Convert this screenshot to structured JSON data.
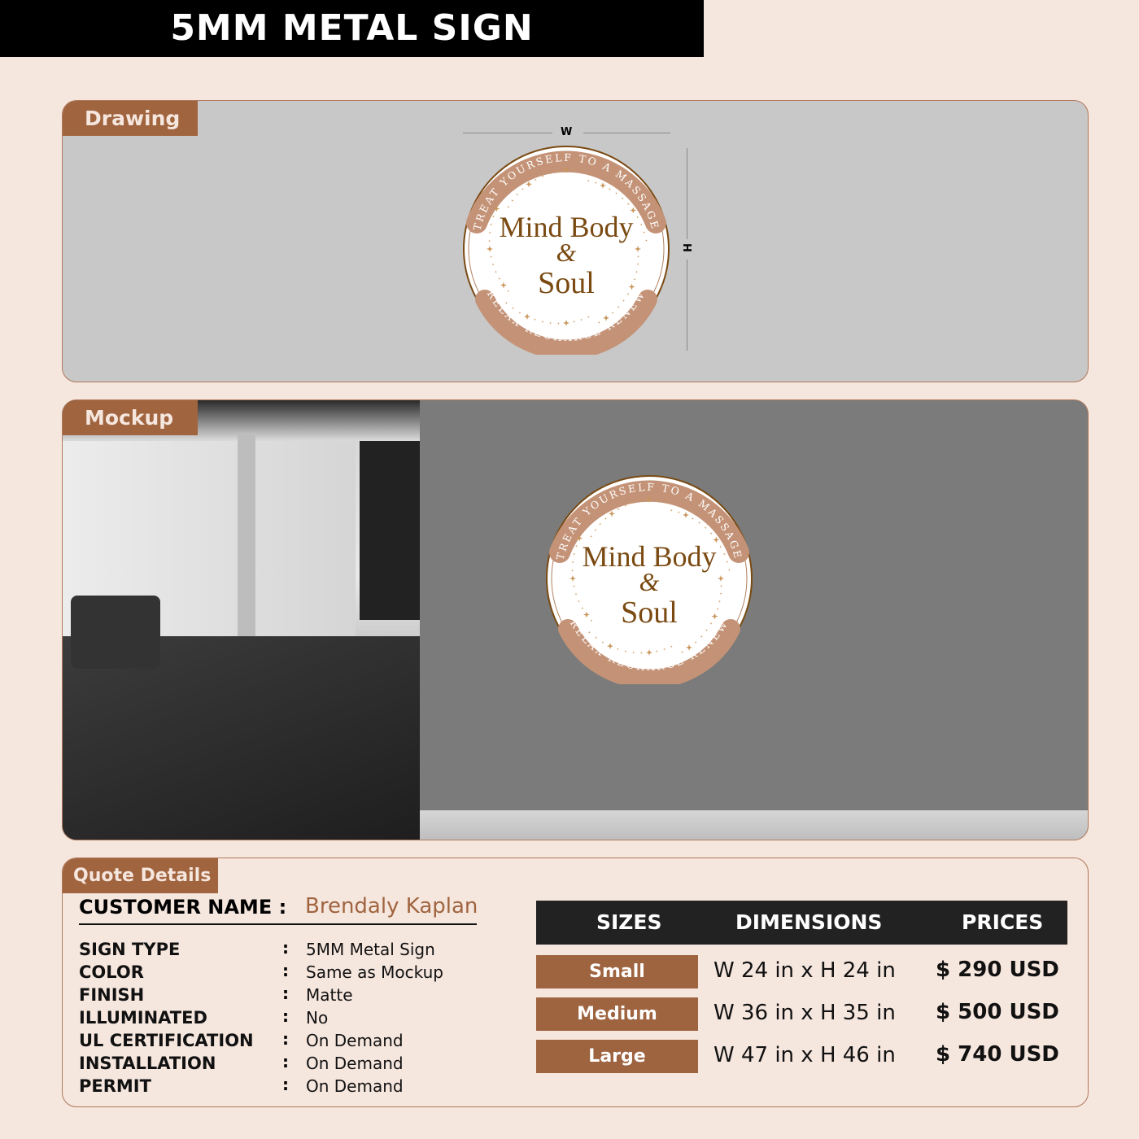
{
  "title": "5MM METAL SIGN",
  "drawing": {
    "label": "Drawing",
    "width_label": "W",
    "height_label": "H"
  },
  "mockup": {
    "label": "Mockup"
  },
  "sign": {
    "top_text": "TREAT YOURSELF TO A MASSAGE",
    "bottom_text": "RELAX RECHARGE RENEW",
    "line1": "Mind Body",
    "line2": "&",
    "line3": "Soul"
  },
  "colors": {
    "accent": "#a0643f",
    "band": "#c49377",
    "text_brown": "#7a4a12",
    "background": "#f5e6de"
  },
  "quote": {
    "label": "Quote Details",
    "customer_label": "CUSTOMER NAME :",
    "customer_name": "Brendaly Kaplan",
    "rows": [
      {
        "label": "SIGN TYPE",
        "value": "5MM Metal Sign"
      },
      {
        "label": "COLOR",
        "value": "Same as Mockup"
      },
      {
        "label": "FINISH",
        "value": "Matte"
      },
      {
        "label": "ILLUMINATED",
        "value": "No"
      },
      {
        "label": "UL CERTIFICATION",
        "value": "On Demand"
      },
      {
        "label": "INSTALLATION",
        "value": "On Demand"
      },
      {
        "label": "PERMIT",
        "value": "On Demand"
      }
    ],
    "table": {
      "headers": [
        "SIZES",
        "DIMENSIONS",
        "PRICES"
      ],
      "rows": [
        {
          "size": "Small",
          "dimensions": "W 24 in x H 24 in",
          "price": "$ 290 USD"
        },
        {
          "size": "Medium",
          "dimensions": "W 36 in x H 35 in",
          "price": "$ 500 USD"
        },
        {
          "size": "Large",
          "dimensions": "W 47 in x H 46 in",
          "price": "$ 740 USD"
        }
      ]
    }
  }
}
